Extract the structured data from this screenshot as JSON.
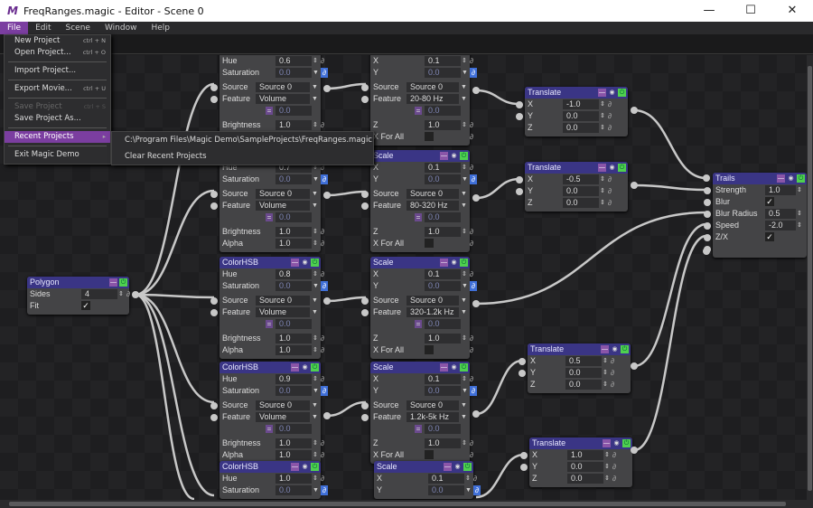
{
  "window": {
    "title": "FreqRanges.magic - Editor - Scene 0",
    "logo": "M",
    "minimize": "—",
    "maximize": "☐",
    "close": "✕"
  },
  "menubar": [
    "File",
    "Edit",
    "Scene",
    "Window",
    "Help"
  ],
  "file_menu": {
    "items": [
      {
        "label": "New Project",
        "shortcut": "ctrl + N"
      },
      {
        "label": "Open Project...",
        "shortcut": "ctrl + O"
      },
      {
        "label": "Import Project...",
        "shortcut": ""
      },
      {
        "label": "Export Movie...",
        "shortcut": "ctrl + U"
      },
      {
        "label": "Save Project",
        "shortcut": "ctrl + S",
        "disabled": true
      },
      {
        "label": "Save Project As...",
        "shortcut": ""
      },
      {
        "label": "Recent Projects",
        "shortcut": "▸",
        "highlighted": true
      },
      {
        "label": "Exit Magic Demo",
        "shortcut": ""
      }
    ],
    "recent": [
      "C:\\Program Files\\Magic Demo\\SampleProjects\\FreqRanges.magic",
      "Clear Recent Projects"
    ]
  },
  "colors": {
    "accent": "#7b3ea0",
    "node_header": "#3a3585",
    "node_body": "#444446",
    "canvas": "#1e1e20"
  },
  "nodes": [
    {
      "title": "ColorHSB",
      "rows": [
        [
          "num",
          "Hue",
          "0.6"
        ],
        [
          "dd",
          "Saturation",
          "0.0"
        ],
        [
          "sel",
          "Source",
          "Source 0"
        ],
        [
          "sel",
          "Feature",
          "Volume"
        ],
        [
          "eq",
          "",
          "0.0"
        ],
        [
          "num",
          "Brightness",
          "1.0"
        ],
        [
          "num",
          "Alpha",
          "1.0"
        ]
      ]
    },
    {
      "title": "ColorHSB",
      "rows": [
        [
          "num",
          "Hue",
          "0.7"
        ],
        [
          "dd",
          "Saturation",
          "0.0"
        ],
        [
          "sel",
          "Source",
          "Source 0"
        ],
        [
          "sel",
          "Feature",
          "Volume"
        ],
        [
          "eq",
          "",
          "0.0"
        ],
        [
          "num",
          "Brightness",
          "1.0"
        ],
        [
          "num",
          "Alpha",
          "1.0"
        ]
      ]
    },
    {
      "title": "ColorHSB",
      "rows": [
        [
          "num",
          "Hue",
          "0.8"
        ],
        [
          "dd",
          "Saturation",
          "0.0"
        ],
        [
          "sel",
          "Source",
          "Source 0"
        ],
        [
          "sel",
          "Feature",
          "Volume"
        ],
        [
          "eq",
          "",
          "0.0"
        ],
        [
          "num",
          "Brightness",
          "1.0"
        ],
        [
          "num",
          "Alpha",
          "1.0"
        ]
      ]
    },
    {
      "title": "ColorHSB",
      "rows": [
        [
          "num",
          "Hue",
          "0.9"
        ],
        [
          "dd",
          "Saturation",
          "0.0"
        ],
        [
          "sel",
          "Source",
          "Source 0"
        ],
        [
          "sel",
          "Feature",
          "Volume"
        ],
        [
          "eq",
          "",
          "0.0"
        ],
        [
          "num",
          "Brightness",
          "1.0"
        ],
        [
          "num",
          "Alpha",
          "1.0"
        ]
      ]
    },
    {
      "title": "ColorHSB",
      "rows": [
        [
          "num",
          "Hue",
          "1.0"
        ],
        [
          "dd",
          "Saturation",
          "0.0"
        ]
      ]
    },
    {
      "title": "Scale",
      "rows": [
        [
          "num",
          "X",
          "0.1"
        ],
        [
          "dd",
          "Y",
          "0.0"
        ],
        [
          "sel",
          "Source",
          "Source 0"
        ],
        [
          "sel",
          "Feature",
          "20-80 Hz"
        ],
        [
          "eq",
          "",
          "0.0"
        ],
        [
          "num",
          "Z",
          "1.0"
        ],
        [
          "chk",
          "X For All",
          false
        ]
      ]
    },
    {
      "title": "Scale",
      "rows": [
        [
          "num",
          "X",
          "0.1"
        ],
        [
          "dd",
          "Y",
          "0.0"
        ],
        [
          "sel",
          "Source",
          "Source 0"
        ],
        [
          "sel",
          "Feature",
          "80-320 Hz"
        ],
        [
          "eq",
          "",
          "0.0"
        ],
        [
          "num",
          "Z",
          "1.0"
        ],
        [
          "chk",
          "X For All",
          false
        ]
      ]
    },
    {
      "title": "Scale",
      "rows": [
        [
          "num",
          "X",
          "0.1"
        ],
        [
          "dd",
          "Y",
          "0.0"
        ],
        [
          "sel",
          "Source",
          "Source 0"
        ],
        [
          "sel",
          "Feature",
          "320-1.2k Hz"
        ],
        [
          "eq",
          "",
          "0.0"
        ],
        [
          "num",
          "Z",
          "1.0"
        ],
        [
          "chk",
          "X For All",
          false
        ]
      ]
    },
    {
      "title": "Scale",
      "rows": [
        [
          "num",
          "X",
          "0.1"
        ],
        [
          "dd",
          "Y",
          "0.0"
        ],
        [
          "sel",
          "Source",
          "Source 0"
        ],
        [
          "sel",
          "Feature",
          "1.2k-5k Hz"
        ],
        [
          "eq",
          "",
          "0.0"
        ],
        [
          "num",
          "Z",
          "1.0"
        ],
        [
          "chk",
          "X For All",
          false
        ]
      ]
    },
    {
      "title": "Scale",
      "rows": [
        [
          "num",
          "X",
          "0.1"
        ],
        [
          "dd",
          "Y",
          "0.0"
        ]
      ]
    },
    {
      "title": "Translate",
      "rows": [
        [
          "num",
          "X",
          "-1.0"
        ],
        [
          "num",
          "Y",
          "0.0"
        ],
        [
          "num",
          "Z",
          "0.0"
        ]
      ]
    },
    {
      "title": "Translate",
      "rows": [
        [
          "num",
          "X",
          "-0.5"
        ],
        [
          "num",
          "Y",
          "0.0"
        ],
        [
          "num",
          "Z",
          "0.0"
        ]
      ]
    },
    {
      "title": "Translate",
      "rows": [
        [
          "num",
          "X",
          "0.5"
        ],
        [
          "num",
          "Y",
          "0.0"
        ],
        [
          "num",
          "Z",
          "0.0"
        ]
      ]
    },
    {
      "title": "Translate",
      "rows": [
        [
          "num",
          "X",
          "1.0"
        ],
        [
          "num",
          "Y",
          "0.0"
        ],
        [
          "num",
          "Z",
          "0.0"
        ]
      ]
    },
    {
      "title": "Trails",
      "rows": [
        [
          "num",
          "Strength",
          "1.0"
        ],
        [
          "chk",
          "Blur",
          true
        ],
        [
          "num",
          "Blur Radius",
          "0.5"
        ],
        [
          "num",
          "Speed",
          "-2.0"
        ],
        [
          "chk",
          "Z/X",
          true
        ],
        [
          "blank",
          "",
          ""
        ]
      ]
    },
    {
      "title": "Polygon",
      "rows": [
        [
          "num",
          "Sides",
          "4"
        ],
        [
          "chk",
          "Fit",
          true
        ]
      ]
    }
  ]
}
